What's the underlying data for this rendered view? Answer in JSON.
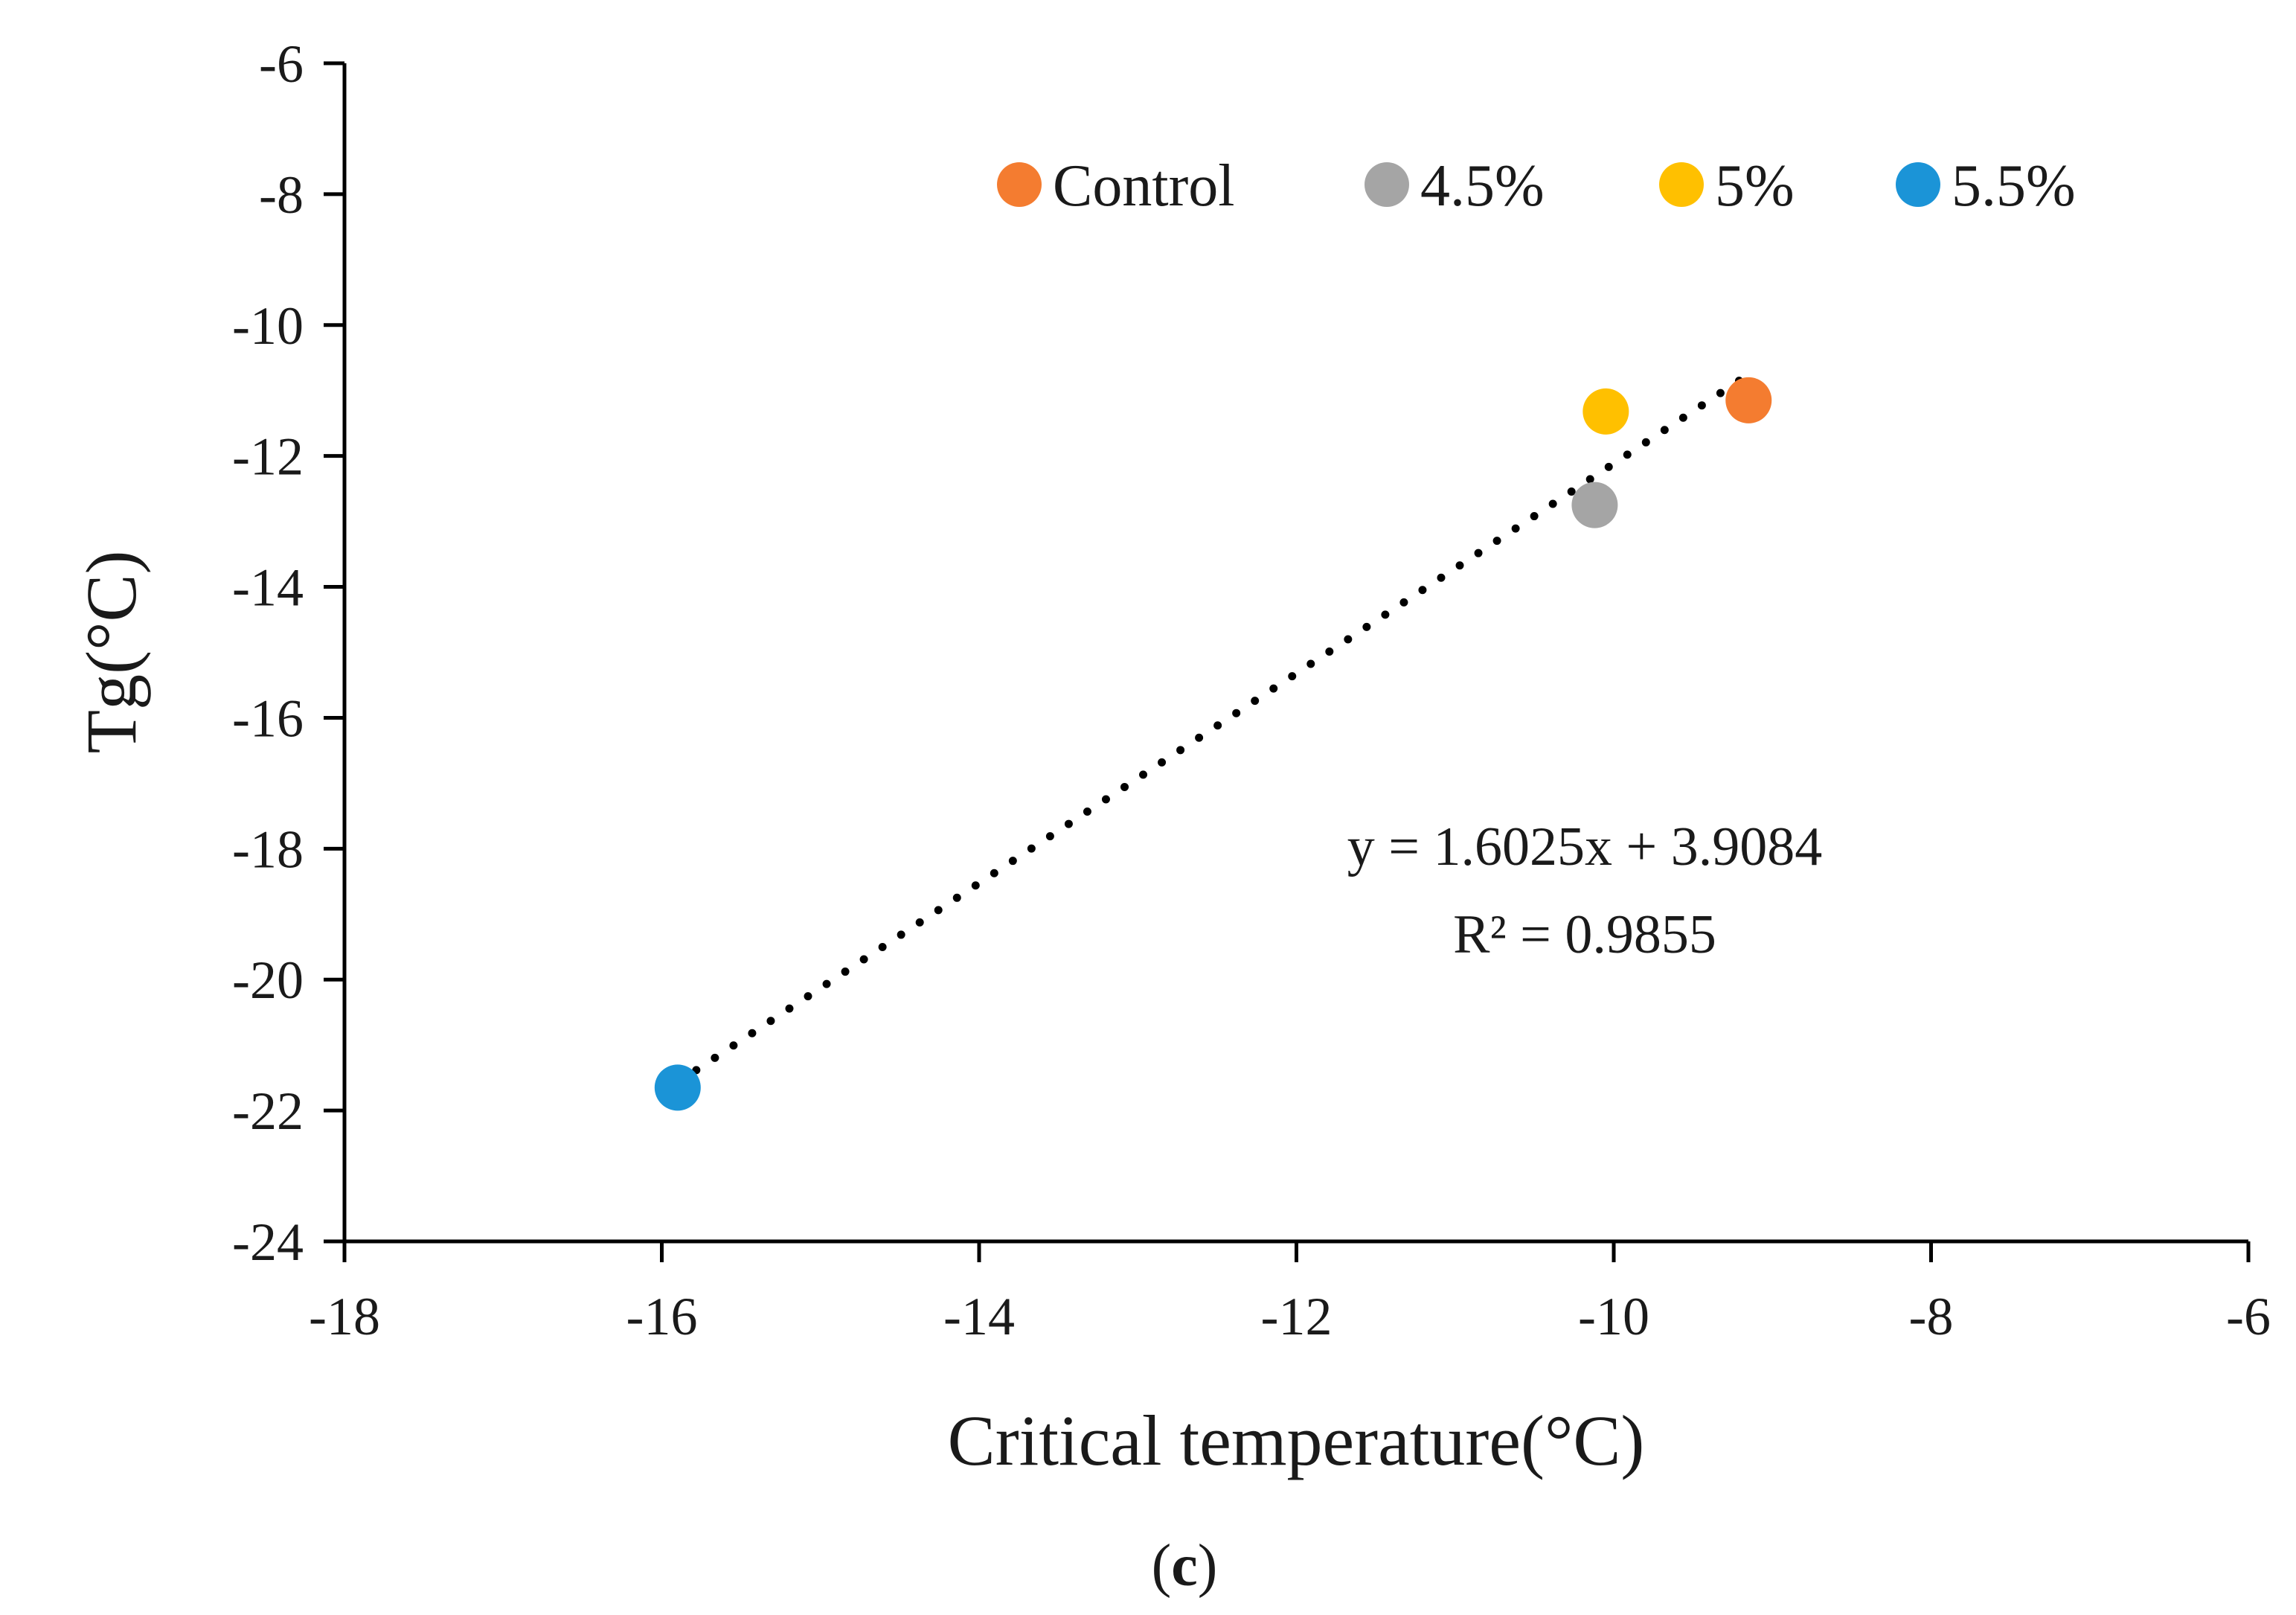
{
  "chart_data": {
    "type": "scatter",
    "xlabel": "Critical temperature(°C)",
    "ylabel": "Tg(°C)",
    "xlim": [
      -18,
      -6
    ],
    "ylim": [
      -24,
      -6
    ],
    "x_ticks": [
      -18,
      -16,
      -14,
      -12,
      -10,
      -8,
      -6
    ],
    "y_ticks": [
      -6,
      -8,
      -10,
      -12,
      -14,
      -16,
      -18,
      -20,
      -22,
      -24
    ],
    "grid": false,
    "legend_position": "top-right",
    "series": [
      {
        "name": "Control",
        "color": "#F47C30",
        "x": -9.15,
        "y": -11.15
      },
      {
        "name": "4.5%",
        "color": "#A5A5A5",
        "x": -10.12,
        "y": -12.75
      },
      {
        "name": "5%",
        "color": "#FFC000",
        "x": -10.05,
        "y": -11.32
      },
      {
        "name": "5.5%",
        "color": "#1B94D7",
        "x": -15.9,
        "y": -21.65
      }
    ],
    "trendline": {
      "type": "linear",
      "style": "dotted",
      "color": "#000000",
      "x_range": [
        -15.9,
        -9.2
      ],
      "equation": "y = 1.6025x + 3.9084",
      "r_squared": "R² = 0.9855"
    }
  },
  "caption": {
    "open": "(",
    "letter": "c",
    "close": ")"
  }
}
